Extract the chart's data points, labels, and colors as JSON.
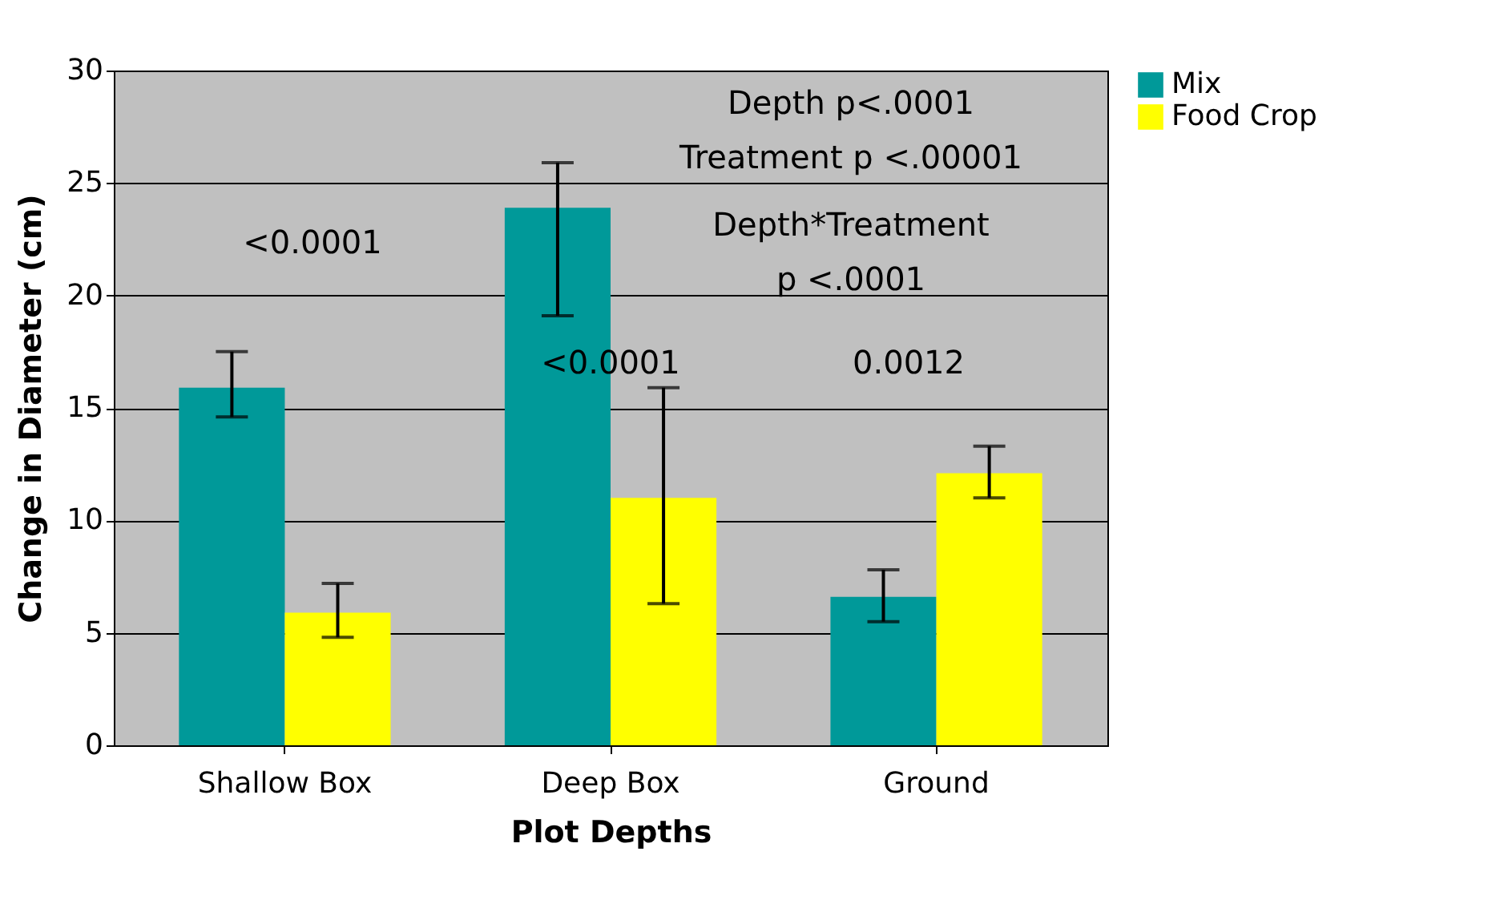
{
  "chart_data": {
    "type": "bar",
    "xlabel": "Plot Depths",
    "ylabel": "Change in Diameter (cm)",
    "categories": [
      "Shallow Box",
      "Deep Box",
      "Ground"
    ],
    "series": [
      {
        "name": "Mix",
        "color": "#009999",
        "values": [
          15.9,
          23.9,
          6.6
        ],
        "errors": [
          [
            14.6,
            17.5
          ],
          [
            19.1,
            25.9
          ],
          [
            5.5,
            7.8
          ]
        ]
      },
      {
        "name": "Food Crop",
        "color": "#ffff00",
        "values": [
          5.9,
          11.0,
          12.1
        ],
        "errors": [
          [
            4.8,
            7.2
          ],
          [
            6.3,
            15.9
          ],
          [
            11.0,
            13.3
          ]
        ]
      }
    ],
    "ylim": [
      0,
      30
    ],
    "yticks": [
      0,
      5,
      10,
      15,
      20,
      25,
      30
    ],
    "grid": "y",
    "legend": "right",
    "annotations": [
      "Depth p<.0001",
      "Treatment p <.00001",
      "Depth*Treatment",
      "p <.0001",
      "<0.0001",
      "<0.0001",
      "0.0012"
    ]
  }
}
